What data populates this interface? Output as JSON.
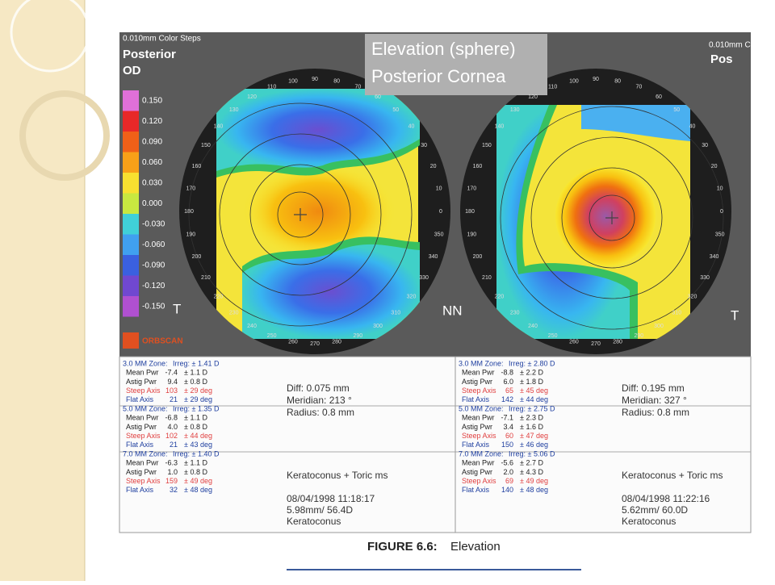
{
  "figure": {
    "left_header": {
      "steps": "0.010mm Color Steps",
      "surface": "Posterior",
      "eye": "OD"
    },
    "right_header": {
      "steps": "0.010mm C",
      "surface": "Pos"
    },
    "title": [
      "Elevation (sphere)",
      "Posterior Cornea"
    ],
    "scale": [
      "0.150",
      "0.120",
      "0.090",
      "0.060",
      "0.030",
      "0.000",
      "-0.030",
      "-0.060",
      "-0.090",
      "-0.120",
      "-0.150"
    ],
    "angles": [
      "0",
      "10",
      "20",
      "30",
      "40",
      "50",
      "60",
      "70",
      "80",
      "90",
      "100",
      "110",
      "120",
      "130",
      "140",
      "150",
      "160",
      "170",
      "180",
      "190",
      "200",
      "210",
      "220",
      "230",
      "240",
      "250",
      "260",
      "270",
      "280",
      "290",
      "300",
      "310",
      "320",
      "330",
      "340",
      "350"
    ],
    "side_labels": [
      "T",
      "NN",
      "T"
    ],
    "logo": "ORBSCAN",
    "panels": [
      {
        "zones": [
          {
            "zone": "3.0 MM Zone:",
            "irreg": "Irreg: ± 1.41 D",
            "rows": [
              [
                "Mean Pwr",
                "-7.4",
                "± 1.1 D"
              ],
              [
                "Astig Pwr",
                "9.4",
                "± 0.8 D"
              ],
              [
                "Steep Axis",
                "103",
                "± 29 deg"
              ],
              [
                "Flat Axis",
                "21",
                "± 29 deg"
              ]
            ]
          },
          {
            "zone": "5.0 MM Zone:",
            "irreg": "Irreg: ± 1.35 D",
            "rows": [
              [
                "Mean Pwr",
                "-6.8",
                "± 1.1 D"
              ],
              [
                "Astig Pwr",
                "4.0",
                "± 0.8 D"
              ],
              [
                "Steep Axis",
                "102",
                "± 44 deg"
              ],
              [
                "Flat Axis",
                "21",
                "± 43 deg"
              ]
            ]
          },
          {
            "zone": "7.0 MM Zone:",
            "irreg": "Irreg: ± 1.40 D",
            "rows": [
              [
                "Mean Pwr",
                "-6.3",
                "± 1.1 D"
              ],
              [
                "Astig Pwr",
                "1.0",
                "± 0.8 D"
              ],
              [
                "Steep Axis",
                "159",
                "± 49 deg"
              ],
              [
                "Flat Axis",
                "32",
                "± 48 deg"
              ]
            ]
          }
        ],
        "notes": [
          "Diff:   0.075 mm",
          "Meridian:  213 °",
          "Radius:    0.8 mm",
          "Keratoconus + Toric ms",
          "08/04/1998 11:18:17",
          "5.98mm/ 56.4D",
          "Keratoconus"
        ]
      },
      {
        "zones": [
          {
            "zone": "3.0 MM Zone:",
            "irreg": "Irreg: ± 2.80 D",
            "rows": [
              [
                "Mean Pwr",
                "-8.8",
                "± 2.2 D"
              ],
              [
                "Astig Pwr",
                "6.0",
                "± 1.8 D"
              ],
              [
                "Steep Axis",
                "65",
                "± 45 deg"
              ],
              [
                "Flat Axis",
                "142",
                "± 44 deg"
              ]
            ]
          },
          {
            "zone": "5.0 MM Zone:",
            "irreg": "Irreg: ± 2.75 D",
            "rows": [
              [
                "Mean Pwr",
                "-7.1",
                "± 2.3 D"
              ],
              [
                "Astig Pwr",
                "3.4",
                "± 1.6 D"
              ],
              [
                "Steep Axis",
                "60",
                "± 47 deg"
              ],
              [
                "Flat Axis",
                "150",
                "± 46 deg"
              ]
            ]
          },
          {
            "zone": "7.0 MM Zone:",
            "irreg": "Irreg: ± 5.06 D",
            "rows": [
              [
                "Mean Pwr",
                "-5.6",
                "± 2.7 D"
              ],
              [
                "Astig Pwr",
                "2.0",
                "± 4.3 D"
              ],
              [
                "Steep Axis",
                "69",
                "± 49 deg"
              ],
              [
                "Flat Axis",
                "140",
                "± 48 deg"
              ]
            ]
          }
        ],
        "notes": [
          "Diff:   0.195 mm",
          "Meridian:  327 °",
          "Radius:    0.8 mm",
          "Keratoconus + Toric ms",
          "08/04/1998 11:22:16",
          "5.62mm/ 60.0D",
          "Keratoconus"
        ]
      }
    ],
    "caption": {
      "label": "FIGURE 6.6:",
      "text": "Elevation"
    }
  }
}
